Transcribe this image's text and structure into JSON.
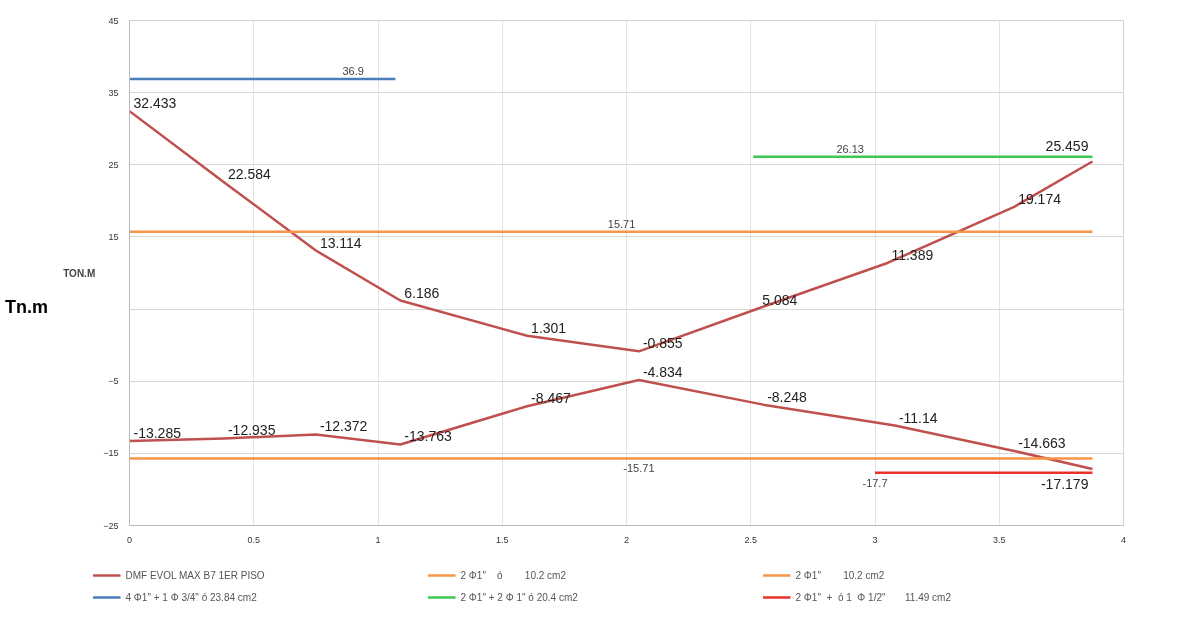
{
  "chart_data": {
    "type": "line",
    "ylabel": "TON.M",
    "xlim": [
      0,
      4
    ],
    "xticks": [
      0,
      0.5,
      1,
      1.5,
      2,
      2.5,
      3,
      3.5,
      4
    ],
    "ylim": [
      -25,
      45
    ],
    "yticks": [
      45,
      35,
      25,
      15,
      {
        "value": 5,
        "label": null
      },
      -5,
      -15,
      -25
    ],
    "grid": true,
    "legend": "bottom",
    "marker": "none",
    "line_style": "solid",
    "series": [
      {
        "name": "DMF EVOL MAX B7 1ER PISO",
        "color": "#c0504d",
        "data_labels": true,
        "x": [
          0,
          0.38,
          0.75,
          1.09,
          1.6,
          2.05,
          2.53,
          3.05,
          3.56,
          3.875
        ],
        "values": [
          32.433,
          22.584,
          13.114,
          6.186,
          1.301,
          -0.855,
          5.084,
          11.389,
          19.174,
          25.459
        ]
      },
      {
        "color": "#c0504d",
        "data_labels": true,
        "x": [
          0,
          0.38,
          0.75,
          1.09,
          1.6,
          2.05,
          2.55,
          3.08,
          3.56,
          3.875
        ],
        "values": [
          -13.285,
          -12.935,
          -12.372,
          -13.763,
          -8.467,
          -4.834,
          -8.248,
          -11.14,
          -14.663,
          -17.179
        ]
      },
      {
        "name": "4 Φ1\" + 1 Φ 3/4\" ó 23.84 cm2",
        "color": "#4a7ebb",
        "x": [
          0,
          1.07
        ],
        "values": [
          36.9,
          36.9
        ]
      },
      {
        "name": "2 Φ1\"    ó        10.2 cm2",
        "color": "#f79646",
        "x": [
          0,
          3.875
        ],
        "values": [
          15.71,
          15.71
        ]
      },
      {
        "name": "2 Φ1\" + 2 Φ 1\" ó 20.4 cm2",
        "color": "#3cc853",
        "x": [
          2.51,
          3.875
        ],
        "values": [
          26.13,
          26.13
        ]
      },
      {
        "name": "2 Φ1\"        10.2 cm2",
        "color": "#f79646",
        "x": [
          0,
          3.875
        ],
        "values": [
          -15.71,
          -15.71
        ]
      },
      {
        "name": "2 Φ1\"  +  ó 1  Φ 1/2\"       11.49 cm2",
        "color": "#e8312a",
        "x": [
          3.0,
          3.875
        ],
        "values": [
          -17.7,
          -17.7
        ]
      }
    ],
    "annotations": [
      "Tn.m",
      {
        "text": "36.9",
        "x": 0.9,
        "y": 36.9
      },
      {
        "text": "15.71",
        "x": 1.98,
        "y": 15.71
      },
      {
        "text": "26.13",
        "x": 2.9,
        "y": 26.13
      },
      {
        "text": "-15.71",
        "x": 2.05,
        "y": -15.71
      },
      {
        "text": "-17.7",
        "x": 3.0,
        "y": -17.7
      }
    ]
  }
}
